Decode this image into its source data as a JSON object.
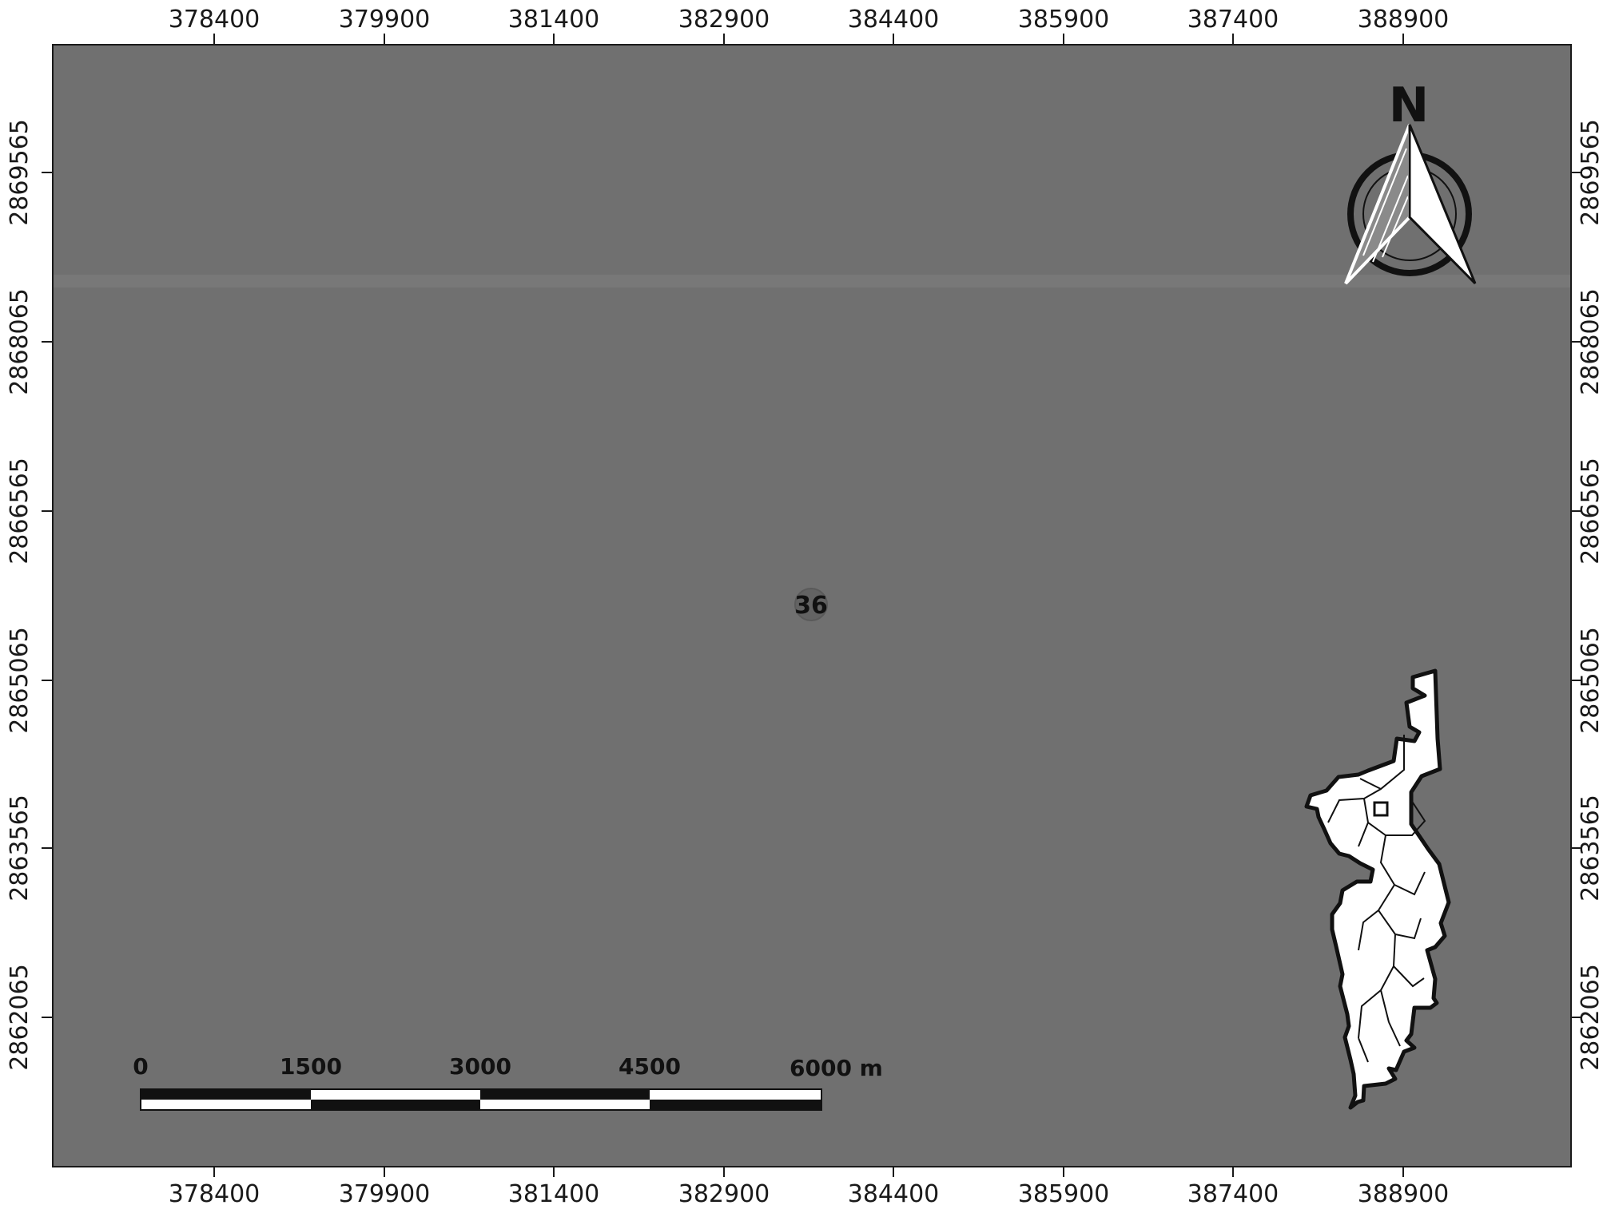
{
  "map": {
    "frame_color": "#707070",
    "background_color": "#ffffff",
    "x_ticks": [
      "378400",
      "379900",
      "381400",
      "382900",
      "384400",
      "385900",
      "387400",
      "388900"
    ],
    "y_ticks": [
      "2869565",
      "2868065",
      "2866565",
      "2865065",
      "2863565",
      "2862065"
    ],
    "feature_label": "36",
    "north_arrow": {
      "letter": "N",
      "icon": "north-arrow-icon"
    },
    "scale_bar": {
      "labels": [
        "0",
        "1500",
        "3000",
        "4500",
        "6000 m"
      ]
    },
    "inset": {
      "icon": "inset-locator-map-icon"
    }
  }
}
